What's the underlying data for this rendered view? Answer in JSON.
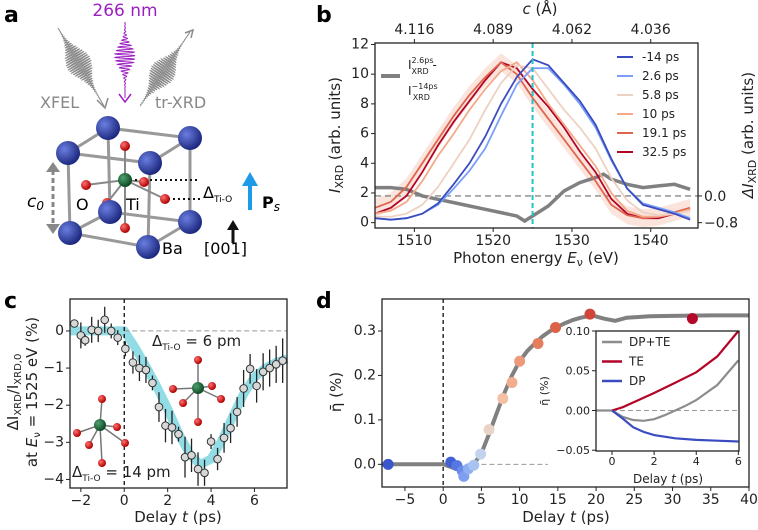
{
  "panel_labels": [
    "a",
    "b",
    "c",
    "d"
  ],
  "panel_a": {
    "pump_label": "266 nm",
    "probe_in_label": "XFEL",
    "probe_out_label": "tr-XRD",
    "lattice_label": "c",
    "lattice_sub": "0",
    "oxygen_label": "O",
    "titanium_label": "Ti",
    "barium_label": "Ba",
    "displacement_label": "Δ",
    "displacement_sub": "Ti-O",
    "polarization_label": "P",
    "polarization_sub": "s",
    "direction_label": "[001]",
    "colors": {
      "pump": "#9b1fc0",
      "barium": "#2b3a9a",
      "titanium": "#1f6b3a",
      "oxygen": "#d81e1e",
      "polarization": "#1e9be8",
      "xray": "#8a8a8a"
    }
  },
  "chart_data": [
    {
      "id": "b",
      "type": "line",
      "xlabel": "Photon energy ",
      "xlabel_var": "E",
      "xlabel_sub": "ν",
      "xlabel_unit": " (eV)",
      "ylabel_var": "I",
      "ylabel_sub": "XRD",
      "ylabel_unit": " (arb. units)",
      "y2label_var": "ΔI",
      "y2label_sub": "XRD",
      "y2label_unit": " (arb. units)",
      "top_axis_label_var": "c",
      "top_axis_label_unit": " (Å)",
      "xlim": [
        1505,
        1546
      ],
      "ylim": [
        -0.36,
        12.1
      ],
      "y2lim": [
        -0.96,
        4.58
      ],
      "xticks": [
        1510,
        1520,
        1530,
        1540
      ],
      "yticks": [
        0,
        2,
        4,
        6,
        8,
        10,
        12
      ],
      "y2ticks": [
        0.0,
        -0.8
      ],
      "y2ticklabels": [
        "0.0",
        "-0.8"
      ],
      "top_ticks": [
        {
          "label": "4.116",
          "energy": 1510
        },
        {
          "label": "4.089",
          "energy": 1520
        },
        {
          "label": "4.062",
          "energy": 1530
        },
        {
          "label": "4.036",
          "energy": 1540
        }
      ],
      "vline": {
        "x": 1525,
        "color": "#22c0c8"
      },
      "hline_y2": 0.0,
      "legend_placement": "top-right",
      "x": [
        1505,
        1507,
        1509,
        1511,
        1513,
        1515,
        1517,
        1519,
        1521,
        1523,
        1525,
        1527,
        1529,
        1531,
        1533,
        1535,
        1537,
        1539,
        1541,
        1543,
        1545
      ],
      "series": [
        {
          "name": "-14 ps",
          "color": "#3b4cc0",
          "values": [
            0.3,
            0.2,
            0.3,
            0.6,
            1.3,
            2.6,
            4.0,
            5.8,
            8.0,
            9.8,
            11.0,
            10.6,
            9.4,
            8.2,
            6.6,
            4.3,
            2.3,
            1.2,
            0.9,
            0.6,
            0.2
          ]
        },
        {
          "name": "2.6 ps",
          "color": "#7b9ff9",
          "values": [
            0.3,
            0.2,
            0.3,
            0.6,
            1.2,
            2.3,
            3.5,
            5.0,
            7.2,
            9.3,
            10.4,
            10.4,
            9.3,
            8.0,
            6.4,
            4.2,
            2.3,
            1.3,
            1.0,
            0.7,
            0.3
          ]
        },
        {
          "name": "5.8 ps",
          "color": "#edd1c2",
          "values": [
            0.4,
            0.4,
            0.6,
            1.2,
            2.4,
            4.0,
            5.6,
            7.6,
            9.4,
            10.6,
            10.4,
            9.0,
            7.6,
            6.4,
            5.0,
            3.0,
            1.5,
            0.7,
            0.5,
            0.6,
            0.8
          ]
        },
        {
          "name": "10 ps",
          "color": "#f4a98a",
          "values": [
            0.6,
            0.8,
            1.4,
            2.8,
            4.5,
            6.0,
            7.6,
            9.0,
            10.2,
            10.8,
            9.6,
            8.0,
            6.6,
            5.2,
            3.8,
            2.0,
            0.8,
            0.4,
            0.4,
            0.6,
            0.9
          ]
        },
        {
          "name": "19.1 ps",
          "color": "#e0654f",
          "values": [
            1.0,
            1.4,
            2.4,
            4.0,
            5.6,
            7.2,
            8.6,
            9.8,
            10.8,
            10.0,
            8.4,
            7.0,
            5.6,
            4.2,
            2.8,
            1.2,
            0.5,
            0.3,
            0.4,
            0.7,
            1.0
          ]
        },
        {
          "name": "32.5 ps",
          "color": "#b40426",
          "values": [
            0.6,
            1.0,
            1.8,
            3.4,
            5.2,
            6.8,
            8.2,
            9.6,
            10.8,
            10.4,
            9.0,
            7.8,
            6.4,
            4.8,
            3.4,
            1.6,
            0.6,
            0.3,
            0.3,
            0.6,
            0.9
          ]
        }
      ],
      "difference": {
        "axis": "right",
        "color": "#808080",
        "legend_main": "I",
        "legend_sup1": "2.6ps",
        "legend_sub1": "XRD",
        "legend_minus": " -",
        "legend_sup2": "−14ps",
        "legend_sub2": "XRD",
        "x": [
          1505,
          1507,
          1509,
          1511,
          1513,
          1515,
          1517,
          1519,
          1521,
          1523,
          1524,
          1525,
          1527,
          1529,
          1531,
          1533,
          1534,
          1535,
          1537,
          1539,
          1541,
          1543,
          1545
        ],
        "values": [
          0.25,
          0.25,
          0.2,
          0.0,
          -0.1,
          -0.2,
          -0.3,
          -0.4,
          -0.5,
          -0.6,
          -0.75,
          -0.6,
          -0.3,
          0.15,
          0.4,
          0.55,
          0.65,
          0.5,
          0.35,
          0.25,
          0.3,
          0.35,
          0.2
        ]
      }
    },
    {
      "id": "c",
      "type": "scatter",
      "xlabel": "Delay ",
      "xlabel_var": "t",
      "xlabel_unit": " (ps)",
      "ylabel_line1": "ΔI",
      "ylabel_line1_sub": "XRD",
      "ylabel_line1_mid": "/I",
      "ylabel_line1_sub2": "XRD,0",
      "ylabel_line2_pre": "at ",
      "ylabel_line2_var": "E",
      "ylabel_line2_sub": "ν",
      "ylabel_line2_post": " = 1525 eV (%)",
      "xlim": [
        -2.5,
        7.5
      ],
      "ylim": [
        -4.23,
        0.86
      ],
      "xticks": [
        -2,
        0,
        2,
        4,
        6
      ],
      "yticks": [
        0,
        -1,
        -2,
        -3,
        -4
      ],
      "vline_x": 0,
      "hline_y": 0,
      "annotation_small": {
        "pre": "Δ",
        "sub": "Ti-O",
        "post": " = 6 pm"
      },
      "annotation_large": {
        "pre": "Δ",
        "sub": "Ti-O",
        "post": " = 14 pm"
      },
      "points": {
        "color": "#d8d8d8",
        "t": [
          -2.3,
          -2.0,
          -1.8,
          -1.5,
          -1.2,
          -0.9,
          -0.6,
          -0.3,
          0.05,
          0.4,
          0.7,
          1.0,
          1.3,
          1.6,
          1.9,
          2.2,
          2.5,
          2.8,
          3.1,
          3.4,
          3.7,
          4.0,
          4.3,
          4.6,
          4.9,
          5.2,
          5.5,
          5.8,
          6.1,
          6.4,
          6.7,
          7.0,
          7.3
        ],
        "values": [
          0.2,
          -0.12,
          -0.25,
          0.03,
          0.0,
          0.3,
          0.0,
          -0.18,
          -0.48,
          -0.85,
          -1.0,
          -1.05,
          -1.4,
          -2.05,
          -2.55,
          -2.6,
          -2.78,
          -3.4,
          -3.35,
          -3.72,
          -3.82,
          -2.98,
          -3.45,
          -2.88,
          -2.62,
          -2.18,
          -1.55,
          -1.02,
          -1.48,
          -1.1,
          -1.0,
          -0.9,
          -0.8
        ],
        "errors": [
          0.1,
          0.35,
          0.15,
          0.35,
          0.3,
          0.35,
          0.2,
          0.2,
          0.2,
          0.3,
          0.35,
          0.35,
          0.2,
          0.4,
          0.45,
          0.45,
          0.2,
          0.55,
          0.45,
          0.45,
          0.35,
          0.2,
          0.3,
          0.4,
          0.4,
          0.4,
          0.5,
          0.4,
          0.45,
          0.5,
          0.5,
          0.5,
          0.6
        ]
      },
      "fit": {
        "color": "#7fd6e0",
        "t": [
          -2.5,
          -1,
          0,
          0.5,
          1,
          1.5,
          2,
          2.5,
          3,
          3.5,
          4,
          4.5,
          5,
          5.5,
          6,
          6.5,
          7,
          7.5
        ],
        "values": [
          0,
          0,
          0,
          -0.45,
          -0.95,
          -1.5,
          -2.1,
          -2.75,
          -3.3,
          -3.6,
          -3.45,
          -2.95,
          -2.3,
          -1.7,
          -1.25,
          -1.0,
          -0.85,
          -0.75
        ]
      }
    },
    {
      "id": "d",
      "type": "scatter",
      "xlabel": "Delay ",
      "xlabel_var": "t",
      "xlabel_unit": " (ps)",
      "ylabel": "η̄ (%)",
      "xlim": [
        -8,
        40
      ],
      "ylim": [
        -0.051,
        0.372
      ],
      "xticks": [
        -5,
        0,
        5,
        10,
        15,
        20,
        25,
        30,
        35,
        40
      ],
      "yticks": [
        0.0,
        0.1,
        0.2,
        0.3
      ],
      "yticklabels": [
        "0.0",
        "0.1",
        "0.2",
        "0.3"
      ],
      "vline_x": 0,
      "hline": {
        "y": 0,
        "from": 5,
        "to": 13.7
      },
      "points": [
        {
          "t": -7.2,
          "v": 0.0,
          "color": "#3b55cc"
        },
        {
          "t": 1.0,
          "v": 0.005,
          "color": "#4262d4"
        },
        {
          "t": 1.8,
          "v": -0.003,
          "color": "#5577e0"
        },
        {
          "t": 2.5,
          "v": -0.015,
          "color": "#6a8ae8"
        },
        {
          "t": 2.7,
          "v": -0.027,
          "color": "#7f9ef0"
        },
        {
          "t": 3.3,
          "v": -0.01,
          "color": "#90aef2"
        },
        {
          "t": 4.0,
          "v": -0.002,
          "color": "#a8c2f2"
        },
        {
          "t": 4.9,
          "v": 0.023,
          "color": "#c2d3ee"
        },
        {
          "t": 6.0,
          "v": 0.078,
          "color": "#e8d3c6"
        },
        {
          "t": 7.8,
          "v": 0.148,
          "color": "#f4bfa2"
        },
        {
          "t": 9.0,
          "v": 0.184,
          "color": "#f2ad8e"
        },
        {
          "t": 10.0,
          "v": 0.232,
          "color": "#ee9a7a"
        },
        {
          "t": 12.4,
          "v": 0.272,
          "color": "#e77d5f"
        },
        {
          "t": 14.7,
          "v": 0.308,
          "color": "#dc6248"
        },
        {
          "t": 19.2,
          "v": 0.338,
          "color": "#d04638"
        },
        {
          "t": 32.6,
          "v": 0.328,
          "color": "#b40a2a"
        }
      ],
      "fit": {
        "color": "#808080",
        "t": [
          -8,
          0,
          1,
          2,
          3,
          4,
          5,
          6,
          7,
          8,
          9,
          10,
          11,
          12,
          13,
          14,
          15,
          16,
          17,
          18,
          19.5,
          21,
          22.5,
          24,
          27,
          30,
          35,
          40
        ],
        "values": [
          0,
          0,
          -0.006,
          -0.012,
          -0.01,
          0.0,
          0.025,
          0.068,
          0.115,
          0.16,
          0.2,
          0.232,
          0.255,
          0.272,
          0.288,
          0.3,
          0.31,
          0.318,
          0.325,
          0.33,
          0.335,
          0.328,
          0.323,
          0.33,
          0.333,
          0.334,
          0.335,
          0.335
        ]
      },
      "inset": {
        "xlabel": "Delay ",
        "xlabel_var": "t",
        "xlabel_unit": " (ps)",
        "ylabel": "η̄ (%)",
        "xlim": [
          -0.76,
          6.03
        ],
        "ylim": [
          -0.051,
          0.1
        ],
        "xticks": [
          0,
          2,
          4,
          6
        ],
        "yticks": [
          0.1,
          0.05,
          0.0,
          -0.05
        ],
        "yticklabels": [
          "0.10",
          "0.05",
          "0.00",
          "−0.05"
        ],
        "hline_y": 0,
        "legend_placement": "top-left",
        "series": [
          {
            "name": "DP+TE",
            "color": "#8c8c8c",
            "t": [
              -0.76,
              0,
              0.5,
              1,
              1.5,
              2,
              2.5,
              3,
              3.5,
              4,
              5,
              6
            ],
            "values": [
              0,
              0,
              -0.008,
              -0.012,
              -0.013,
              -0.011,
              -0.006,
              0.0,
              0.006,
              0.013,
              0.032,
              0.063
            ]
          },
          {
            "name": "TE",
            "color": "#b40426",
            "t": [
              0,
              0.5,
              1,
              1.5,
              2,
              3,
              4,
              5,
              6
            ],
            "values": [
              0,
              0.004,
              0.01,
              0.016,
              0.022,
              0.035,
              0.048,
              0.068,
              0.1
            ]
          },
          {
            "name": "DP",
            "color": "#3b4cc0",
            "t": [
              0,
              0.5,
              1,
              1.5,
              2,
              3,
              4,
              5,
              6
            ],
            "values": [
              0,
              -0.01,
              -0.021,
              -0.027,
              -0.031,
              -0.035,
              -0.037,
              -0.038,
              -0.039
            ]
          }
        ]
      }
    }
  ]
}
